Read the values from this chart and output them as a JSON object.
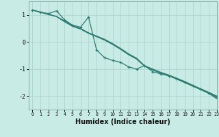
{
  "xlabel": "Humidex (Indice chaleur)",
  "xlim": [
    -0.5,
    23
  ],
  "ylim": [
    -2.5,
    1.5
  ],
  "yticks": [
    1,
    0,
    -1,
    -2
  ],
  "xticks": [
    0,
    1,
    2,
    3,
    4,
    5,
    6,
    7,
    8,
    9,
    10,
    11,
    12,
    13,
    14,
    15,
    16,
    17,
    18,
    19,
    20,
    21,
    22,
    23
  ],
  "background_color": "#c8ebe5",
  "grid_color": "#b0d8d0",
  "line_color": "#2e7d72",
  "series_straight": [
    [
      1.18,
      1.1,
      1.02,
      0.94,
      0.78,
      0.6,
      0.5,
      0.34,
      0.22,
      0.1,
      -0.06,
      -0.24,
      -0.44,
      -0.6,
      -0.88,
      -1.0,
      -1.12,
      -1.22,
      -1.34,
      -1.46,
      -1.6,
      -1.73,
      -1.86,
      -2.0
    ],
    [
      1.18,
      1.1,
      1.02,
      0.94,
      0.75,
      0.58,
      0.48,
      0.32,
      0.2,
      0.07,
      -0.09,
      -0.27,
      -0.47,
      -0.63,
      -0.9,
      -1.03,
      -1.15,
      -1.25,
      -1.37,
      -1.5,
      -1.63,
      -1.76,
      -1.9,
      -2.05
    ],
    [
      1.18,
      1.1,
      1.02,
      0.94,
      0.75,
      0.58,
      0.48,
      0.32,
      0.2,
      0.07,
      -0.09,
      -0.27,
      -0.47,
      -0.63,
      -0.9,
      -1.03,
      -1.15,
      -1.25,
      -1.37,
      -1.5,
      -1.63,
      -1.76,
      -1.9,
      -2.1
    ]
  ],
  "series_zigzag": [
    1.18,
    1.1,
    1.05,
    1.15,
    0.82,
    0.62,
    0.55,
    0.92,
    -0.3,
    -0.58,
    -0.68,
    -0.75,
    -0.92,
    -1.0,
    -0.87,
    -1.1,
    -1.18,
    -1.25,
    -1.35,
    -1.48,
    -1.62,
    -1.75,
    -1.88,
    -2.02
  ]
}
